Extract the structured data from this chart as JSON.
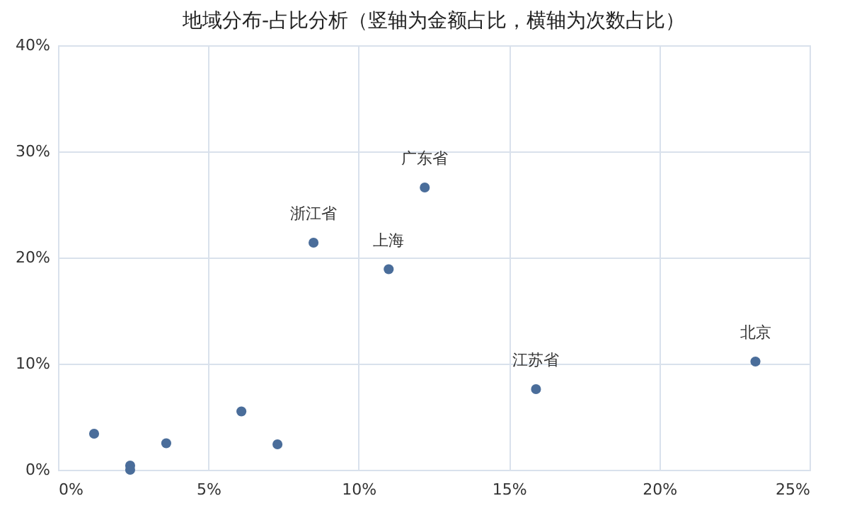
{
  "chart_data": {
    "type": "scatter",
    "title": "地域分布-占比分析（竖轴为金额占比，横轴为次数占比）",
    "x": [
      1.2,
      2.4,
      2.4,
      3.6,
      6.1,
      7.3,
      8.5,
      11.0,
      12.2,
      15.9,
      23.2
    ],
    "series": [
      {
        "color": "#4a6d9a",
        "values": [
          3.4,
          0.4,
          0.0,
          2.5,
          5.5,
          2.4,
          21.4,
          18.9,
          26.6,
          7.6,
          10.2
        ],
        "value_labels": [
          null,
          null,
          null,
          null,
          null,
          null,
          "浙江省",
          "上海",
          "广东省",
          "江苏省",
          "北京"
        ]
      }
    ],
    "xlim": [
      0,
      25
    ],
    "xticks": [
      {
        "value": 0,
        "label": "0%"
      },
      {
        "value": 5,
        "label": "5%"
      },
      {
        "value": 10,
        "label": "10%"
      },
      {
        "value": 15,
        "label": "15%"
      },
      {
        "value": 20,
        "label": "20%"
      },
      {
        "value": 25,
        "label": "25%"
      }
    ],
    "ylim": [
      0,
      40
    ],
    "yticks": [
      {
        "value": 0,
        "label": "0%"
      },
      {
        "value": 10,
        "label": "10%"
      },
      {
        "value": 20,
        "label": "20%"
      },
      {
        "value": 30,
        "label": "30%"
      },
      {
        "value": 40,
        "label": "40%"
      }
    ],
    "grid": true,
    "marker": "circle"
  }
}
